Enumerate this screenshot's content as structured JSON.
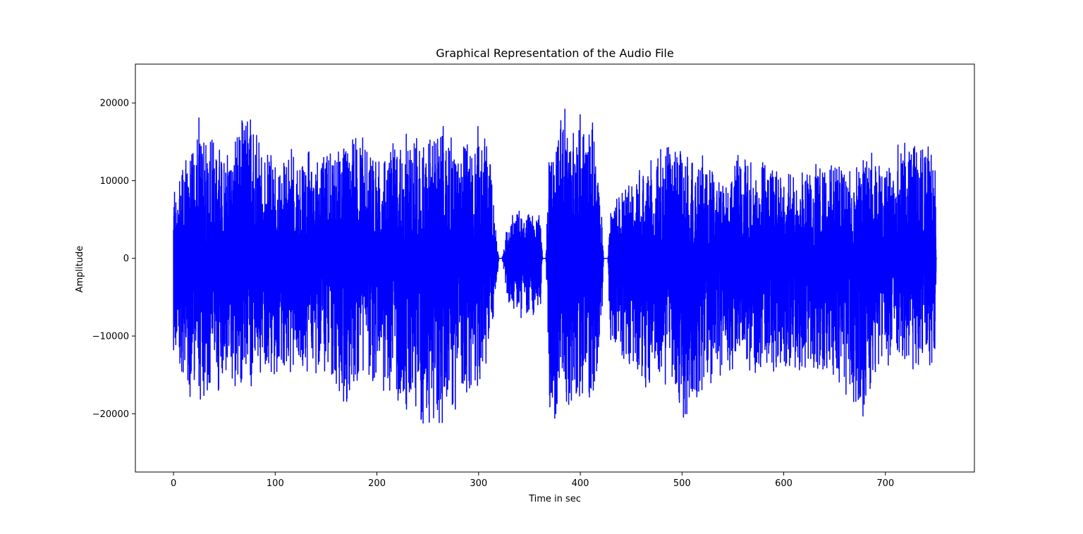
{
  "chart_data": {
    "type": "line",
    "title": "Graphical Representation of the Audio File",
    "xlabel": "Time in sec",
    "ylabel": "Amplitude",
    "xlim": [
      -37.5,
      787.5
    ],
    "ylim": [
      -27500,
      25000
    ],
    "xticks": [
      0,
      100,
      200,
      300,
      400,
      500,
      600,
      700
    ],
    "yticks": [
      -20000,
      -10000,
      0,
      10000,
      20000
    ],
    "xtick_labels": [
      "0",
      "100",
      "200",
      "300",
      "400",
      "500",
      "600",
      "700"
    ],
    "ytick_labels": [
      "−20000",
      "−10000",
      "0",
      "10000",
      "20000"
    ],
    "grid": false,
    "legend": "none",
    "series": [
      {
        "color": "#0000ff",
        "x_range": [
          0,
          750
        ],
        "envelope": {
          "x": [
            0,
            25,
            50,
            70,
            100,
            150,
            169,
            200,
            250,
            260,
            282,
            310,
            317,
            320,
            323,
            330,
            360,
            363,
            366,
            370,
            373,
            380,
            410,
            420,
            423,
            427,
            430,
            470,
            480,
            500,
            540,
            550,
            600,
            630,
            680,
            700,
            740,
            749,
            750
          ],
          "upper": [
            9500,
            19000,
            14500,
            20800,
            13800,
            14500,
            18000,
            14800,
            17500,
            18000,
            16900,
            17000,
            4500,
            0,
            0,
            6000,
            7000,
            0,
            0,
            17500,
            14000,
            18500,
            22800,
            8500,
            0,
            0,
            7500,
            14500,
            17000,
            15500,
            11000,
            14700,
            12500,
            12000,
            14500,
            13500,
            17000,
            13000,
            0
          ],
          "lower": [
            -13000,
            -21500,
            -18300,
            -18000,
            -16000,
            -15500,
            -20500,
            -17000,
            -23800,
            -25400,
            -21300,
            -15000,
            -5000,
            0,
            0,
            -7000,
            -9000,
            0,
            0,
            -22500,
            -23800,
            -20000,
            -21500,
            -13000,
            0,
            0,
            -13000,
            -19000,
            -16000,
            -23000,
            -15500,
            -16000,
            -17000,
            -15500,
            -22000,
            -15000,
            -16500,
            -14000,
            0
          ]
        }
      }
    ]
  }
}
